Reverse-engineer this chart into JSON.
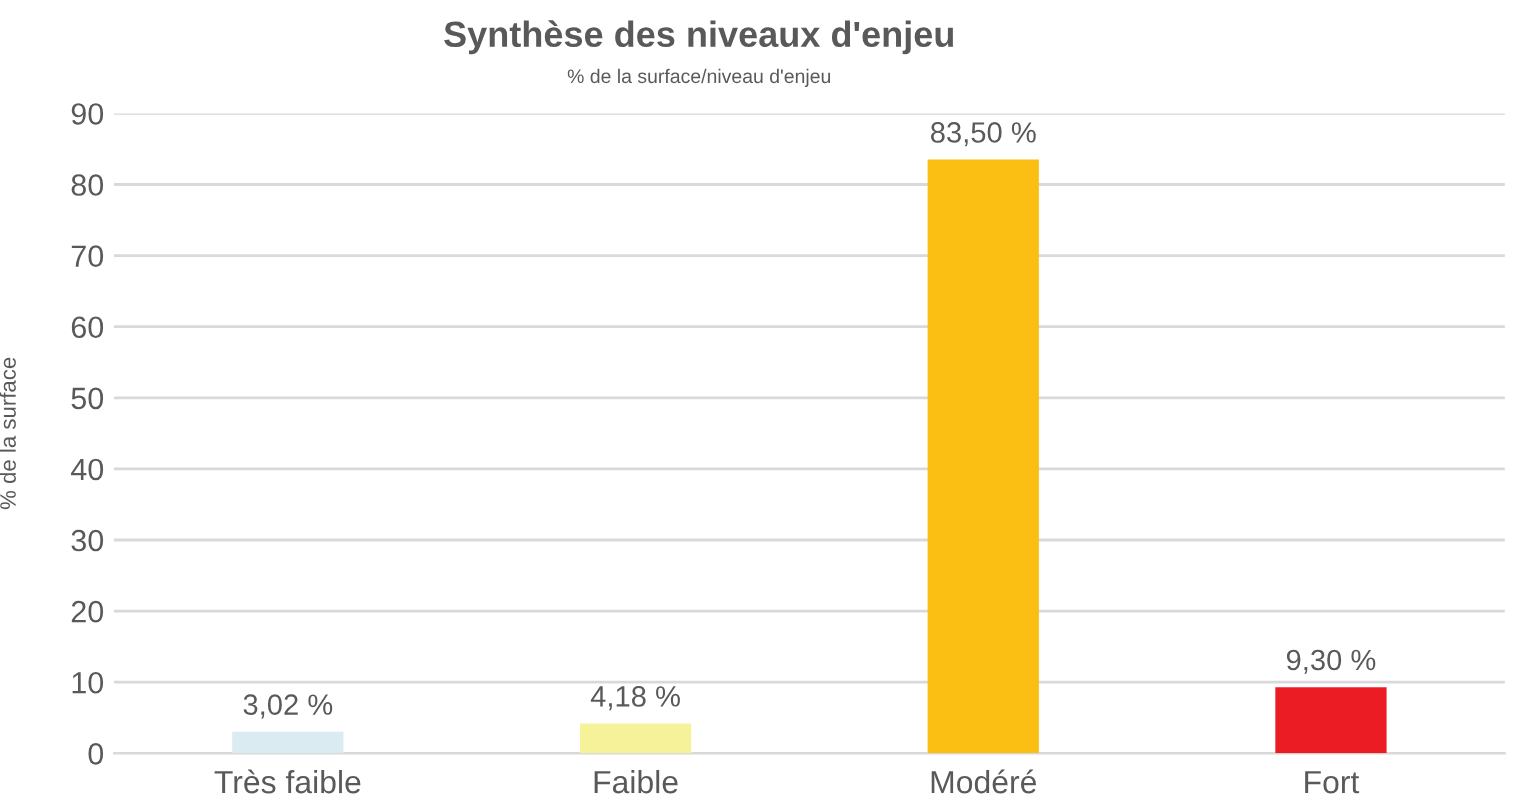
{
  "chart_data": {
    "type": "bar",
    "title": "Synthèse des niveaux d'enjeu",
    "subtitle": "% de la surface/niveau d'enjeu",
    "ylabel": "% de la surface",
    "categories": [
      "Très faible",
      "Faible",
      "Modéré",
      "Fort"
    ],
    "values": [
      3.02,
      4.18,
      83.5,
      9.3
    ],
    "colors": [
      "#daecf2",
      "#f5f29a",
      "#fbbf14",
      "#ec1c24"
    ],
    "value_labels": [
      "3,02 %",
      "4,18 %",
      "83,50 %",
      "9,30 %"
    ],
    "ylim": [
      0,
      90
    ],
    "yticks": [
      0,
      10,
      20,
      30,
      40,
      50,
      60,
      70,
      80,
      90
    ],
    "grid": "y",
    "legend": false
  }
}
